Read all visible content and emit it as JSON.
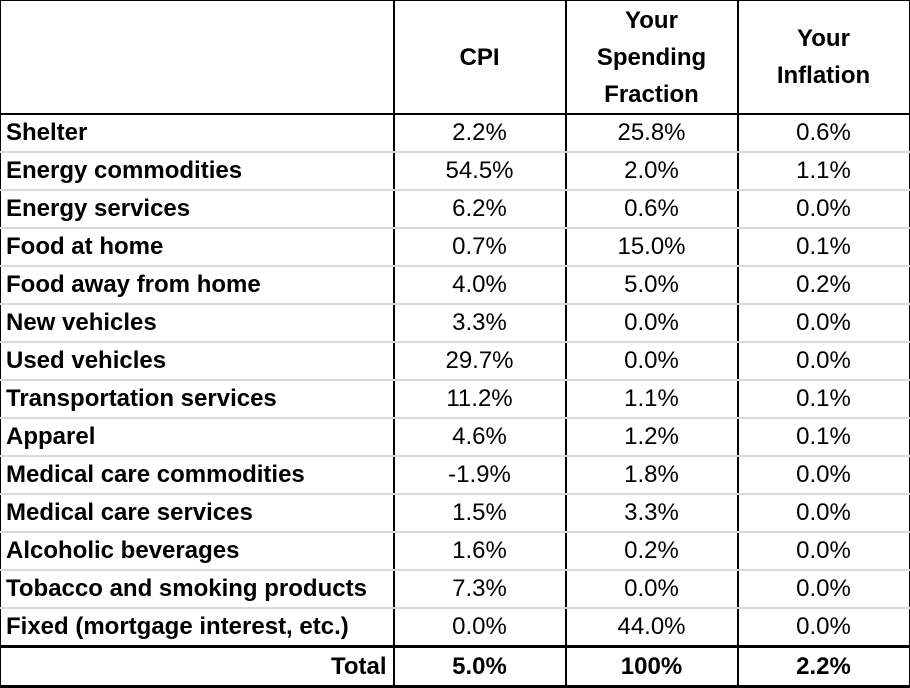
{
  "colors": {
    "border": "#000000",
    "gridline": "#d9d9d9",
    "text": "#000000",
    "background": "#ffffff"
  },
  "chart_data": {
    "type": "table",
    "title": "",
    "columns": [
      "",
      "CPI",
      "Your Spending Fraction",
      "Your Inflation"
    ],
    "rows": [
      [
        "Shelter",
        "2.2%",
        "25.8%",
        "0.6%"
      ],
      [
        "Energy commodities",
        "54.5%",
        "2.0%",
        "1.1%"
      ],
      [
        "Energy services",
        "6.2%",
        "0.6%",
        "0.0%"
      ],
      [
        "Food at home",
        "0.7%",
        "15.0%",
        "0.1%"
      ],
      [
        "Food away from home",
        "4.0%",
        "5.0%",
        "0.2%"
      ],
      [
        "New vehicles",
        "3.3%",
        "0.0%",
        "0.0%"
      ],
      [
        "Used vehicles",
        "29.7%",
        "0.0%",
        "0.0%"
      ],
      [
        "Transportation services",
        "11.2%",
        "1.1%",
        "0.1%"
      ],
      [
        "Apparel",
        "4.6%",
        "1.2%",
        "0.1%"
      ],
      [
        "Medical care commodities",
        "-1.9%",
        "1.8%",
        "0.0%"
      ],
      [
        "Medical care services",
        "1.5%",
        "3.3%",
        "0.0%"
      ],
      [
        "Alcoholic beverages",
        "1.6%",
        "0.2%",
        "0.0%"
      ],
      [
        "Tobacco and smoking products",
        "7.3%",
        "0.0%",
        "0.0%"
      ],
      [
        "Fixed (mortgage interest, etc.)",
        "0.0%",
        "44.0%",
        "0.0%"
      ]
    ],
    "total_row": [
      "Total",
      "5.0%",
      "100%",
      "2.2%"
    ]
  }
}
